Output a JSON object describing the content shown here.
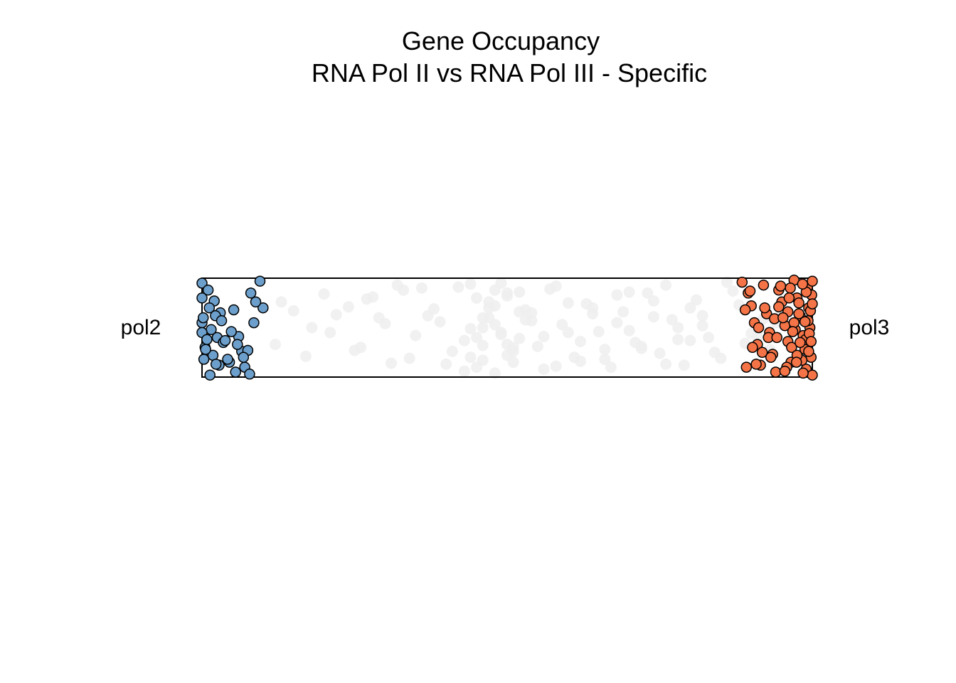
{
  "chart_data": {
    "type": "scatter",
    "title": "Gene Occupancy",
    "subtitle": "RNA Pol II vs RNA Pol III - Specific",
    "left_label": "pol2",
    "right_label": "pol3",
    "xlim": [
      0,
      1
    ],
    "ylim": [
      0,
      1
    ],
    "xlabel": "",
    "ylabel": "",
    "grid": false,
    "colors": {
      "pol2_fill": "#6c9fcb",
      "pol3_fill": "#f57447",
      "other_fill": "#eeeeee",
      "point_outline": "#000000",
      "frame": "#000000"
    },
    "series": [
      {
        "name": "other",
        "x": [
          0.2,
          0.22,
          0.25,
          0.27,
          0.3,
          0.33,
          0.35,
          0.37,
          0.4,
          0.42,
          0.44,
          0.46,
          0.48,
          0.5,
          0.52,
          0.54,
          0.56,
          0.58,
          0.6,
          0.62,
          0.64,
          0.66,
          0.68,
          0.7,
          0.72,
          0.74,
          0.76,
          0.78,
          0.8,
          0.82,
          0.84,
          0.87,
          0.9,
          0.12,
          0.15,
          0.18,
          0.28,
          0.31,
          0.36,
          0.39,
          0.43,
          0.45,
          0.47,
          0.49,
          0.51,
          0.53,
          0.55,
          0.57,
          0.59,
          0.61,
          0.63,
          0.65,
          0.67,
          0.69,
          0.71,
          0.73,
          0.75,
          0.77,
          0.79,
          0.81,
          0.83,
          0.86,
          0.89,
          0.92,
          0.94,
          0.13,
          0.17,
          0.21,
          0.24,
          0.26,
          0.29,
          0.32,
          0.34,
          0.38,
          0.41,
          0.44,
          0.46,
          0.48,
          0.5,
          0.52,
          0.54,
          0.56,
          0.58,
          0.6,
          0.62,
          0.64,
          0.66,
          0.68,
          0.7,
          0.72,
          0.74,
          0.76,
          0.78,
          0.8,
          0.82,
          0.85,
          0.88,
          0.91,
          0.93,
          0.95,
          0.43,
          0.45,
          0.47,
          0.49,
          0.51,
          0.53,
          0.44,
          0.46,
          0.48,
          0.5,
          0.52,
          0.45,
          0.47,
          0.49,
          0.51,
          0.46,
          0.48,
          0.5
        ],
        "y": [
          0.84,
          0.63,
          0.27,
          0.79,
          0.54,
          0.88,
          0.42,
          0.62,
          0.13,
          0.91,
          0.49,
          0.32,
          0.72,
          0.22,
          0.86,
          0.57,
          0.41,
          0.11,
          0.75,
          0.36,
          0.64,
          0.18,
          0.83,
          0.47,
          0.29,
          0.61,
          0.93,
          0.38,
          0.7,
          0.52,
          0.25,
          0.87,
          0.44,
          0.33,
          0.67,
          0.5,
          0.81,
          0.14,
          0.9,
          0.56,
          0.37,
          0.8,
          0.6,
          0.43,
          0.15,
          0.68,
          0.31,
          0.89,
          0.53,
          0.2,
          0.74,
          0.46,
          0.1,
          0.66,
          0.35,
          0.85,
          0.24,
          0.58,
          0.12,
          0.78,
          0.4,
          0.96,
          0.34,
          0.59,
          0.55,
          0.76,
          0.21,
          0.45,
          0.71,
          0.3,
          0.6,
          0.93,
          0.19,
          0.69,
          0.26,
          0.94,
          0.17,
          0.53,
          0.82,
          0.39,
          0.65,
          0.08,
          0.92,
          0.45,
          0.16,
          0.7,
          0.28,
          0.55,
          0.86,
          0.31,
          0.77,
          0.13,
          0.5,
          0.37,
          0.62,
          0.19,
          0.73,
          0.41,
          0.28,
          0.66,
          0.06,
          0.4,
          0.7,
          0.95,
          0.26,
          0.58,
          0.2,
          0.5,
          0.88,
          0.33,
          0.66,
          0.1,
          0.76,
          0.45,
          0.3,
          0.6,
          0.04,
          0.85
        ]
      },
      {
        "name": "pol2",
        "x": [
          0.0,
          0.01,
          0.02,
          0.03,
          0.0,
          0.015,
          0.025,
          0.005,
          0.018,
          0.028,
          0.0,
          0.012,
          0.022,
          0.035,
          0.045,
          0.055,
          0.065,
          0.0,
          0.008,
          0.032,
          0.042,
          0.052,
          0.06,
          0.07,
          0.075,
          0.08,
          0.085,
          0.095,
          0.1,
          0.003,
          0.013,
          0.023,
          0.038,
          0.048,
          0.058,
          0.068,
          0.078,
          0.088,
          0.002,
          0.006
        ],
        "y": [
          0.95,
          0.88,
          0.77,
          0.65,
          0.55,
          0.48,
          0.4,
          0.3,
          0.22,
          0.12,
          0.8,
          0.7,
          0.62,
          0.35,
          0.15,
          0.05,
          0.26,
          0.45,
          0.38,
          0.57,
          0.18,
          0.68,
          0.41,
          0.1,
          0.27,
          0.85,
          0.55,
          0.97,
          0.7,
          0.18,
          0.02,
          0.13,
          0.37,
          0.46,
          0.33,
          0.2,
          0.03,
          0.76,
          0.6,
          0.28
        ]
      },
      {
        "name": "pol3",
        "x": [
          0.885,
          0.895,
          0.9,
          0.905,
          0.91,
          0.915,
          0.92,
          0.925,
          0.93,
          0.935,
          0.94,
          0.945,
          0.95,
          0.955,
          0.96,
          0.965,
          0.97,
          0.975,
          0.98,
          0.985,
          0.988,
          0.99,
          0.992,
          0.994,
          0.996,
          0.998,
          1.0,
          1.0,
          0.999,
          0.997,
          0.993,
          0.989,
          0.983,
          0.978,
          0.972,
          0.966,
          0.958,
          0.948,
          0.938,
          0.928,
          0.918,
          0.908,
          0.898,
          0.89,
          0.96,
          0.97,
          0.98,
          0.99,
          1.0,
          0.975,
          0.985,
          0.995,
          0.962,
          0.952,
          0.942,
          0.932,
          0.922,
          0.912,
          0.902,
          0.892,
          0.964,
          0.974,
          0.984,
          0.994,
          0.968,
          0.978,
          0.988,
          0.998,
          0.955,
          0.945
        ],
        "y": [
          0.96,
          0.85,
          0.72,
          0.55,
          0.33,
          0.12,
          0.93,
          0.64,
          0.45,
          0.23,
          0.05,
          0.88,
          0.76,
          0.52,
          0.36,
          0.15,
          0.98,
          0.8,
          0.62,
          0.42,
          0.28,
          0.08,
          0.91,
          0.7,
          0.5,
          0.2,
          0.02,
          0.97,
          0.83,
          0.67,
          0.57,
          0.38,
          0.17,
          0.75,
          0.48,
          0.3,
          0.1,
          0.92,
          0.59,
          0.4,
          0.25,
          0.13,
          0.87,
          0.68,
          0.66,
          0.55,
          0.35,
          0.86,
          0.74,
          0.22,
          0.04,
          0.44,
          0.8,
          0.6,
          0.4,
          0.2,
          0.7,
          0.5,
          0.3,
          0.1,
          0.9,
          0.15,
          0.94,
          0.26,
          0.46,
          0.64,
          0.56,
          0.36,
          0.06,
          0.71
        ]
      }
    ]
  }
}
